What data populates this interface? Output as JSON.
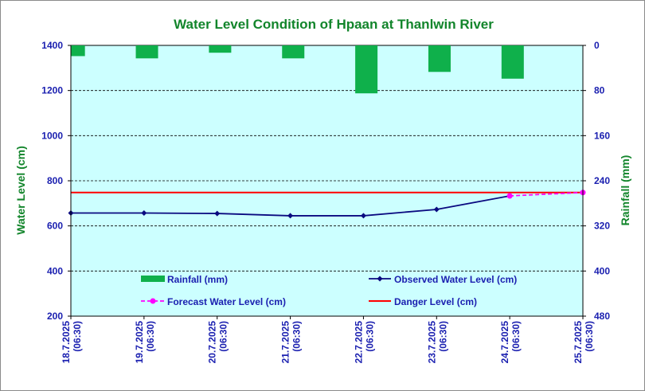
{
  "chart_data": {
    "type": "bar+line",
    "title": "Water Level Condition of Hpaan at Thanlwin River",
    "ylabel": "Water Level (cm)",
    "y2label": "Rainfall (mm)",
    "ylim": [
      200,
      1400
    ],
    "y_ticks": [
      200,
      400,
      600,
      800,
      1000,
      1200,
      1400
    ],
    "y2lim": [
      0,
      480
    ],
    "y2_ticks": [
      0,
      80,
      160,
      240,
      320,
      400,
      480
    ],
    "y2_inverted": true,
    "grid": "horizontal dashed",
    "legend_position": "bottom inside plot",
    "categories": [
      {
        "date": "18.7.2025",
        "time": "(06:30)"
      },
      {
        "date": "19.7.2025",
        "time": "(06:30)"
      },
      {
        "date": "20.7.2025",
        "time": "(06:30)"
      },
      {
        "date": "21.7.2025",
        "time": "(06:30)"
      },
      {
        "date": "22.7.2025",
        "time": "(06:30)"
      },
      {
        "date": "23.7.2025",
        "time": "(06:30)"
      },
      {
        "date": "24.7.2025",
        "time": "(06:30)"
      },
      {
        "date": "25.7.2025",
        "time": "(06:30)"
      }
    ],
    "rainfall": {
      "name": "Rainfall (mm)",
      "color": "#0fb04b",
      "x": [
        "18.7.2025",
        "19.7.2025",
        "20.7.2025",
        "21.7.2025",
        "22.7.2025",
        "23.7.2025",
        "24.7.2025"
      ],
      "values": [
        19,
        23,
        13,
        23,
        85,
        47,
        59
      ]
    },
    "observed": {
      "name": "Observed Water Level (cm)",
      "color": "#0a0a80",
      "x": [
        "18.7.2025",
        "19.7.2025",
        "20.7.2025",
        "21.7.2025",
        "22.7.2025",
        "23.7.2025",
        "24.7.2025"
      ],
      "values": [
        657,
        657,
        655,
        645,
        645,
        673,
        733
      ]
    },
    "forecast": {
      "name": "Forecast Water Level (cm)",
      "color": "#ff00ff",
      "x": [
        "24.7.2025",
        "25.7.2025"
      ],
      "values": [
        733,
        748
      ]
    },
    "danger": {
      "name": "Danger Level (cm)",
      "color": "#ff0000",
      "value": 748
    },
    "plot_background": "#ccffff"
  }
}
